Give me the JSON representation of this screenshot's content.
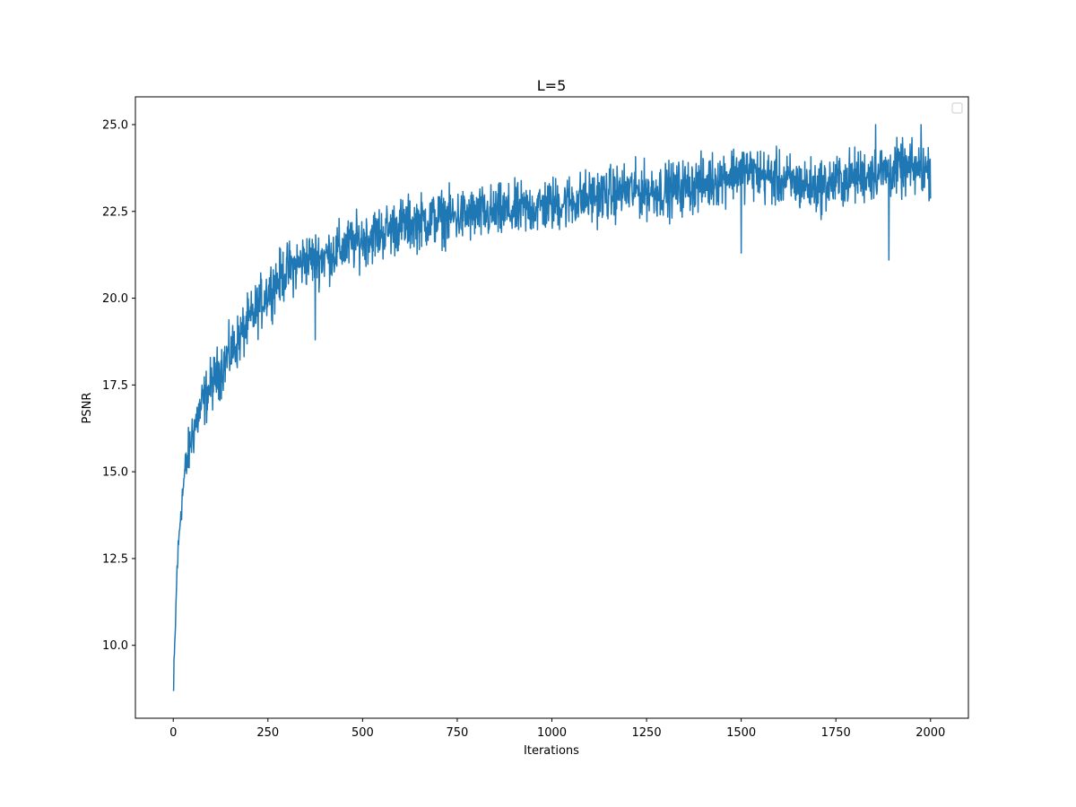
{
  "chart_data": {
    "type": "line",
    "title": "L=5",
    "xlabel": "Iterations",
    "ylabel": "PSNR",
    "xlim": [
      -100,
      2100
    ],
    "ylim": [
      7.9,
      25.8
    ],
    "x_ticks": [
      0,
      250,
      500,
      750,
      1000,
      1250,
      1500,
      1750,
      2000
    ],
    "x_tick_labels": [
      "0",
      "250",
      "500",
      "750",
      "1000",
      "1250",
      "1500",
      "1750",
      "2000"
    ],
    "y_ticks": [
      10.0,
      12.5,
      15.0,
      17.5,
      20.0,
      22.5,
      25.0
    ],
    "y_tick_labels": [
      "10.0",
      "12.5",
      "15.0",
      "17.5",
      "20.0",
      "22.5",
      "25.0"
    ],
    "grid": false,
    "legend": {
      "placement": "upper right",
      "entries": []
    },
    "series": [
      {
        "color": "#1f77b4",
        "x_start": 0,
        "x_end": 2000,
        "trend": {
          "x": [
            0,
            5,
            10,
            20,
            30,
            50,
            75,
            100,
            150,
            200,
            250,
            300,
            350,
            400,
            500,
            600,
            700,
            800,
            900,
            1000,
            1100,
            1200,
            1300,
            1400,
            1500,
            1600,
            1700,
            1800,
            1900,
            2000
          ],
          "y": [
            8.7,
            10.3,
            12.2,
            13.9,
            14.9,
            16.1,
            16.9,
            17.5,
            18.4,
            19.3,
            20.2,
            20.8,
            21.1,
            21.2,
            21.7,
            22.1,
            22.3,
            22.4,
            22.5,
            22.7,
            22.9,
            23.1,
            23.1,
            23.3,
            23.7,
            23.4,
            23.2,
            23.5,
            23.7,
            23.7
          ]
        },
        "noise_amplitude": 0.55,
        "notable_points": [
          {
            "x": 1,
            "y": 8.7
          },
          {
            "x": 375,
            "y": 18.8
          },
          {
            "x": 1500,
            "y": 21.3
          },
          {
            "x": 1890,
            "y": 21.1
          },
          {
            "x": 1855,
            "y": 25.0
          },
          {
            "x": 1975,
            "y": 25.0
          }
        ]
      }
    ]
  }
}
